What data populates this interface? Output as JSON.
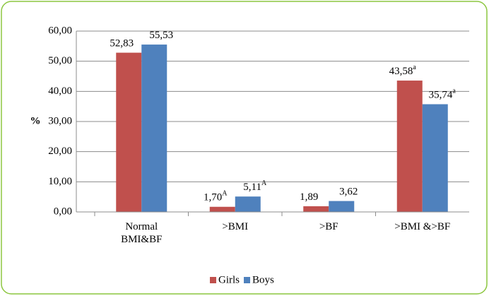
{
  "chart_data": {
    "type": "bar",
    "y_label": "%",
    "categories": [
      "Normal\nBMI&BF",
      ">BMI",
      ">BF",
      ">BMI &>BF"
    ],
    "series": [
      {
        "name": "Girls",
        "color": "#c0504d",
        "values": [
          52.83,
          1.7,
          1.89,
          43.58
        ],
        "value_labels": [
          "52,83",
          "1,70",
          "1,89",
          "43,58"
        ],
        "superscripts": [
          null,
          "A",
          null,
          "a"
        ]
      },
      {
        "name": "Boys",
        "color": "#4f81bd",
        "values": [
          55.53,
          5.11,
          3.62,
          35.74
        ],
        "value_labels": [
          "55,53",
          "5,11",
          "3,62",
          "35,74"
        ],
        "superscripts": [
          null,
          "A",
          null,
          "a"
        ]
      }
    ],
    "ylim": [
      0,
      60
    ],
    "yticks": [
      {
        "value": 0,
        "label": "0,00"
      },
      {
        "value": 10,
        "label": "10,00"
      },
      {
        "value": 20,
        "label": "20,00"
      },
      {
        "value": 30,
        "label": "30,00"
      },
      {
        "value": 40,
        "label": "40,00"
      },
      {
        "value": 50,
        "label": "50,00"
      },
      {
        "value": 60,
        "label": "60,00"
      }
    ],
    "grid": true,
    "legend": "bottom"
  }
}
